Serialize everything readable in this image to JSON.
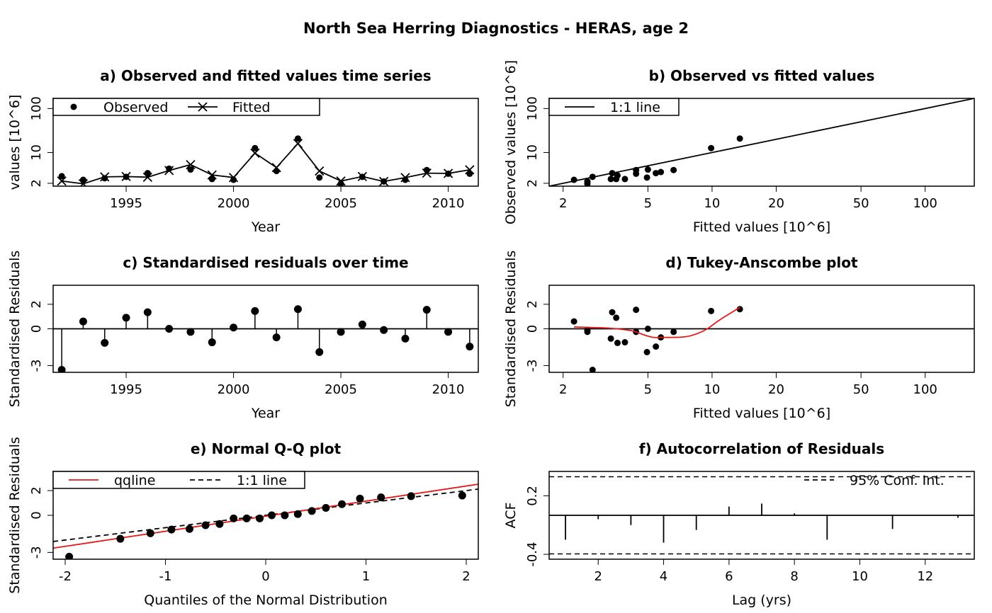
{
  "figure": {
    "title": "North Sea Herring Diagnostics - HERAS, age 2"
  },
  "chart_data": [
    {
      "id": "a",
      "type": "line",
      "title": "a) Observed and fitted values time series",
      "xlabel": "Year",
      "ylabel": "values [10^6]",
      "xlim": [
        1991.6,
        2011.4
      ],
      "ylim": [
        1.72,
        170
      ],
      "log_y": true,
      "x_ticks": [
        1995,
        2000,
        2005,
        2010
      ],
      "y_ticks": [
        2,
        10,
        100
      ],
      "legend": {
        "position": "top-left",
        "entries": [
          "Observed",
          "Fitted"
        ]
      },
      "x": [
        1992,
        1993,
        1994,
        1995,
        1996,
        1997,
        1998,
        1999,
        2000,
        2001,
        2002,
        2003,
        2004,
        2005,
        2006,
        2007,
        2008,
        2009,
        2010,
        2011
      ],
      "series": [
        {
          "name": "Observed",
          "style": "points",
          "values": [
            2.9,
            2.4,
            2.6,
            2.8,
            3.4,
            4.3,
            4.1,
            2.5,
            2.4,
            12.6,
            3.8,
            20.8,
            2.7,
            1.95,
            2.8,
            2.2,
            2.4,
            4.0,
            3.3,
            3.3
          ]
        },
        {
          "name": "Fitted",
          "style": "line-x",
          "values": [
            2.25,
            1.95,
            2.8,
            2.85,
            2.75,
            3.9,
            5.3,
            3.1,
            2.7,
            9.7,
            4.55,
            16.0,
            3.8,
            2.25,
            2.85,
            2.2,
            2.7,
            3.4,
            3.35,
            4.05
          ]
        }
      ]
    },
    {
      "id": "b",
      "type": "scatter",
      "title": "b) Observed vs fitted values",
      "xlabel": "Fitted values [10^6]",
      "ylabel": "Observed values [10^6]",
      "xlim": [
        1.72,
        170
      ],
      "ylim": [
        1.72,
        170
      ],
      "log_x": true,
      "log_y": true,
      "x_ticks": [
        2,
        5,
        10,
        20,
        50,
        100
      ],
      "y_ticks": [
        2,
        10,
        100
      ],
      "legend": {
        "position": "top-left",
        "entries": [
          "1:1 line"
        ]
      },
      "reference_line": "1:1",
      "x": [
        2.25,
        2.6,
        2.6,
        2.75,
        3.35,
        3.4,
        3.55,
        3.6,
        3.9,
        4.4,
        4.4,
        4.95,
        5.0,
        5.45,
        5.75,
        6.6,
        9.9,
        13.5
      ],
      "y": [
        2.4,
        2.2,
        1.95,
        2.8,
        2.5,
        3.4,
        2.5,
        3.0,
        2.5,
        3.3,
        4.0,
        2.7,
        4.1,
        3.4,
        3.6,
        4.0,
        12.6,
        20.8
      ]
    },
    {
      "id": "c",
      "type": "scatter",
      "title": "c) Standardised residuals over time",
      "xlabel": "Year",
      "ylabel": "Standardised Residuals",
      "xlim": [
        1991.6,
        2011.4
      ],
      "ylim": [
        -3.55,
        3.55
      ],
      "x_ticks": [
        1995,
        2000,
        2005,
        2010
      ],
      "y_ticks": [
        -3,
        0,
        2
      ],
      "zero_line": true,
      "x": [
        1992,
        1993,
        1994,
        1995,
        1996,
        1997,
        1998,
        1999,
        2000,
        2001,
        2002,
        2003,
        2004,
        2005,
        2006,
        2007,
        2008,
        2009,
        2010,
        2011
      ],
      "values": [
        -3.35,
        0.6,
        -1.15,
        0.9,
        1.35,
        0.0,
        -0.25,
        -1.1,
        0.1,
        1.45,
        -0.7,
        1.6,
        -1.9,
        -0.25,
        0.35,
        -0.1,
        -0.8,
        1.55,
        -0.25,
        -1.45
      ]
    },
    {
      "id": "d",
      "type": "scatter",
      "title": "d) Tukey-Anscombe plot",
      "xlabel": "Fitted values [10^6]",
      "ylabel": "Standardised Residuals",
      "xlim": [
        1.72,
        170
      ],
      "ylim": [
        -3.55,
        3.55
      ],
      "log_x": true,
      "x_ticks": [
        2,
        5,
        10,
        20,
        50,
        100
      ],
      "y_ticks": [
        -3,
        0,
        2
      ],
      "zero_line": true,
      "x": [
        2.25,
        2.6,
        2.6,
        2.75,
        3.35,
        3.4,
        3.55,
        3.6,
        3.9,
        4.4,
        4.4,
        4.95,
        5.0,
        5.45,
        5.75,
        6.6,
        9.9,
        13.5
      ],
      "y": [
        0.6,
        -0.25,
        -0.1,
        -3.35,
        -0.8,
        1.35,
        0.9,
        -1.15,
        -1.1,
        -0.25,
        1.55,
        -1.9,
        0.0,
        -1.45,
        -0.7,
        -0.25,
        1.45,
        1.6
      ],
      "smoother": {
        "x": [
          2.25,
          2.8,
          3.3,
          3.8,
          4.3,
          4.8,
          5.3,
          5.8,
          6.5,
          7.5,
          8.5,
          9.5,
          10.5,
          11.5,
          13.5
        ],
        "y": [
          0.15,
          0.1,
          0.05,
          -0.05,
          -0.2,
          -0.5,
          -0.7,
          -0.7,
          -0.7,
          -0.65,
          -0.4,
          0.0,
          0.55,
          1.0,
          1.75
        ]
      }
    },
    {
      "id": "e",
      "type": "scatter",
      "title": "e) Normal Q-Q plot",
      "xlabel": "Quantiles of the Normal Distribution",
      "ylabel": "Standardised Residuals",
      "xlim": [
        -2.12,
        2.12
      ],
      "ylim": [
        -3.55,
        3.55
      ],
      "x_ticks": [
        -2,
        -1,
        0,
        1,
        2
      ],
      "y_ticks": [
        -3,
        0,
        2
      ],
      "legend": {
        "position": "top-left",
        "entries": [
          "qqline",
          "1:1 line"
        ]
      },
      "x": [
        -1.96,
        -1.45,
        -1.15,
        -0.94,
        -0.76,
        -0.6,
        -0.46,
        -0.32,
        -0.19,
        -0.06,
        0.06,
        0.19,
        0.32,
        0.46,
        0.6,
        0.76,
        0.94,
        1.15,
        1.45,
        1.96
      ],
      "y": [
        -3.35,
        -1.9,
        -1.45,
        -1.15,
        -1.1,
        -0.8,
        -0.7,
        -0.25,
        -0.25,
        -0.25,
        0.0,
        0.0,
        0.1,
        0.35,
        0.6,
        0.9,
        1.35,
        1.45,
        1.55,
        1.6
      ],
      "qqline": {
        "intercept": -0.07,
        "slope": 1.22
      },
      "reference_line": "1:1"
    },
    {
      "id": "f",
      "type": "bar",
      "title": "f) Autocorrelation of Residuals",
      "xlabel": "Lag (yrs)",
      "ylabel": "ACF",
      "xlim": [
        0.5,
        13.5
      ],
      "ylim": [
        -0.45,
        0.45
      ],
      "x_ticks": [
        2,
        4,
        6,
        8,
        10,
        12
      ],
      "y_ticks": [
        -0.4,
        0.2
      ],
      "legend": {
        "position": "top-right",
        "entries": [
          "95% Conf. Int."
        ]
      },
      "conf_int": 0.396,
      "categories": [
        1,
        2,
        3,
        4,
        5,
        6,
        7,
        8,
        9,
        10,
        11,
        12,
        13
      ],
      "values": [
        -0.25,
        -0.04,
        -0.1,
        -0.28,
        -0.15,
        0.09,
        0.12,
        0.02,
        -0.25,
        0.005,
        -0.14,
        0.0,
        -0.025
      ]
    }
  ]
}
